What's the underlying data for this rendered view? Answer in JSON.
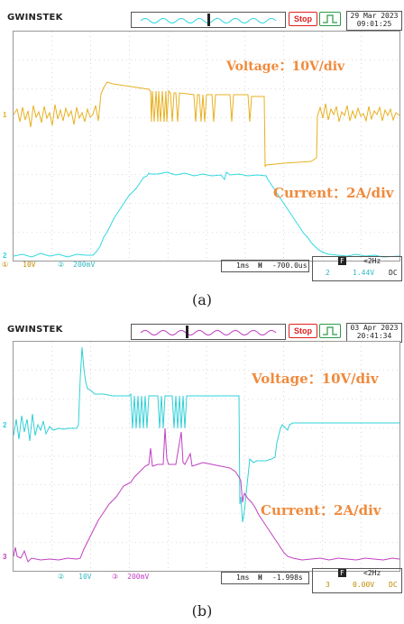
{
  "panel_a": {
    "brand": "GWINSTEK",
    "stop_label": "Stop",
    "date": "29 Mar 2023",
    "time": "09:01:25",
    "voltage_label": "Voltage：10V/div",
    "current_label": "Current：2A/div",
    "ch1_scale": "10V",
    "ch2_scale": "200mV",
    "timebase": "1ms",
    "h_position": "-700.0us",
    "trig_mode": "F",
    "trig_freq": "<2Hz",
    "trig_source": "2",
    "trig_level": "1.44V",
    "trig_coupling": "DC",
    "caption": "(a)"
  },
  "panel_b": {
    "brand": "GWINSTEK",
    "stop_label": "Stop",
    "date": "03 Apr 2023",
    "time": "20:41:34",
    "voltage_label": "Voltage：10V/div",
    "current_label": "Current：2A/div",
    "ch2_scale": "10V",
    "ch3_scale": "200mV",
    "timebase": "1ms",
    "h_position": "-1.998s",
    "trig_mode": "F",
    "trig_freq": "<2Hz",
    "trig_source": "3",
    "trig_level": "0.00V",
    "trig_coupling": "DC",
    "caption": "(b)"
  },
  "colors": {
    "voltage_a": "#e8b020",
    "current_a": "#30d8e0",
    "voltage_b": "#30d0d8",
    "current_b": "#c040c0",
    "annotation": "#f08a3c"
  }
}
